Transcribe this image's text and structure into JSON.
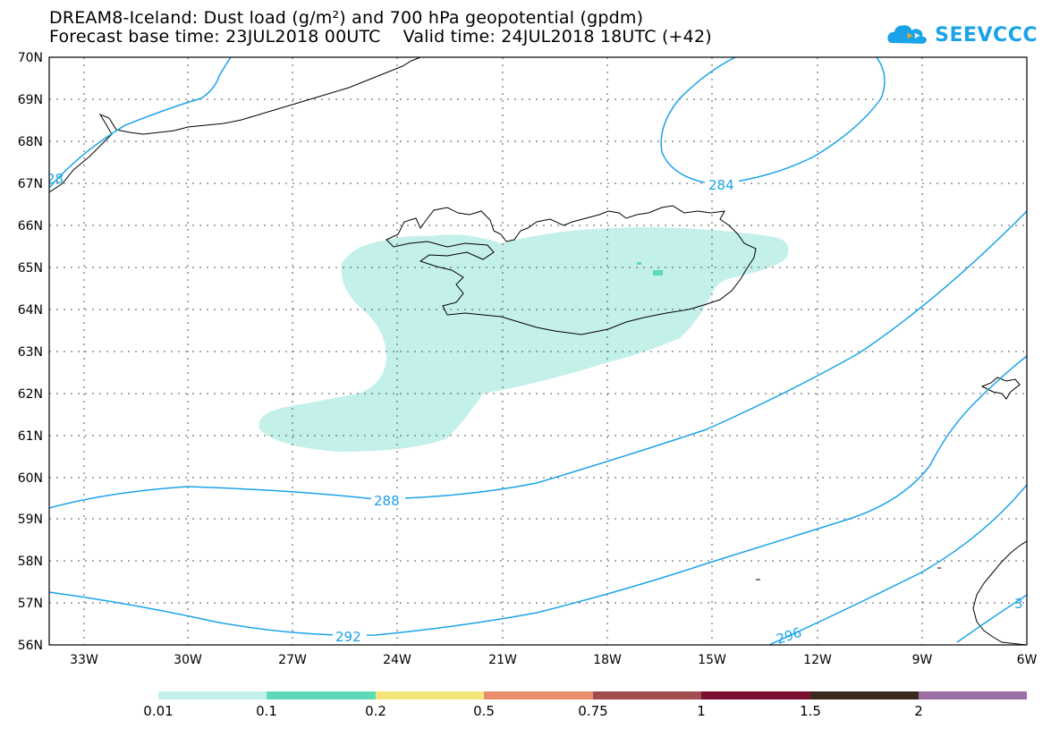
{
  "header": {
    "title_line1": "DREAM8-Iceland: Dust load (g/m²) and 700 hPa geopotential (gpdm)",
    "title_line2": "Forecast base time: 23JUL2018 00UTC    Valid time: 24JUL2018 18UTC (+42)"
  },
  "logo": {
    "text": "SEEVCCC",
    "icon": "cloud-icon",
    "color": "#1aa3e8"
  },
  "map": {
    "lat_labels": [
      "70N",
      "69N",
      "68N",
      "67N",
      "66N",
      "65N",
      "64N",
      "63N",
      "62N",
      "61N",
      "60N",
      "59N",
      "58N",
      "57N",
      "56N"
    ],
    "lon_labels": [
      "33W",
      "30W",
      "27W",
      "24W",
      "21W",
      "18W",
      "15W",
      "12W",
      "9W",
      "6W"
    ],
    "contour_labels": [
      "284",
      "288",
      "292",
      "296",
      "28",
      "3"
    ],
    "contour_color": "#1aa3e8",
    "dust_color_low": "#c4f0ea",
    "dust_color_mid": "#5ed9b5"
  },
  "colorbar": {
    "labels": [
      "0.01",
      "0.1",
      "0.2",
      "0.5",
      "0.75",
      "1",
      "1.5",
      "2"
    ],
    "colors": [
      "#c4f0ea",
      "#5ed9b5",
      "#f5e67a",
      "#e88c6b",
      "#a34e4e",
      "#7a0f30",
      "#3a2a1e",
      "#9b6fa3"
    ]
  }
}
